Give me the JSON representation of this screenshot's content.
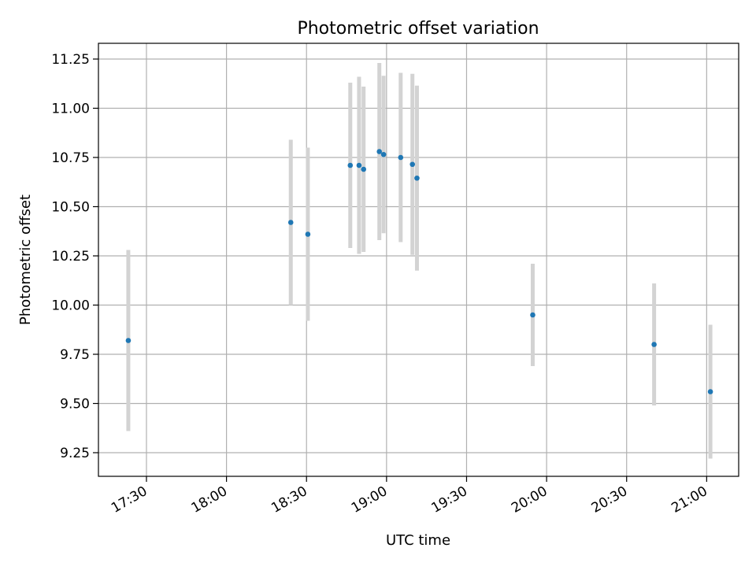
{
  "chart_data": {
    "type": "scatter",
    "title": "Photometric offset variation",
    "xlabel": "UTC time",
    "ylabel": "Photometric offset",
    "x_unit": "minutes since 00:00 UTC",
    "xlim": [
      1032,
      1272
    ],
    "ylim": [
      9.13,
      11.33
    ],
    "grid": true,
    "x_ticks": [
      {
        "value": 1050,
        "label": "17:30"
      },
      {
        "value": 1080,
        "label": "18:00"
      },
      {
        "value": 1110,
        "label": "18:30"
      },
      {
        "value": 1140,
        "label": "19:00"
      },
      {
        "value": 1170,
        "label": "19:30"
      },
      {
        "value": 1200,
        "label": "20:00"
      },
      {
        "value": 1230,
        "label": "20:30"
      },
      {
        "value": 1260,
        "label": "21:00"
      }
    ],
    "y_ticks": [
      {
        "value": 9.25,
        "label": "9.25"
      },
      {
        "value": 9.5,
        "label": "9.50"
      },
      {
        "value": 9.75,
        "label": "9.75"
      },
      {
        "value": 10.0,
        "label": "10.00"
      },
      {
        "value": 10.25,
        "label": "10.25"
      },
      {
        "value": 10.5,
        "label": "10.50"
      },
      {
        "value": 10.75,
        "label": "10.75"
      },
      {
        "value": 11.0,
        "label": "11.00"
      },
      {
        "value": 11.25,
        "label": "11.25"
      }
    ],
    "marker_color": "#1f77b4",
    "errorbar_color": "#d3d3d3",
    "points": [
      {
        "x": 1043.2,
        "y": 9.82,
        "err": 0.46
      },
      {
        "x": 1104.1,
        "y": 10.42,
        "err": 0.42
      },
      {
        "x": 1110.5,
        "y": 10.36,
        "err": 0.44
      },
      {
        "x": 1126.4,
        "y": 10.71,
        "err": 0.42
      },
      {
        "x": 1129.7,
        "y": 10.71,
        "err": 0.45
      },
      {
        "x": 1131.4,
        "y": 10.69,
        "err": 0.42
      },
      {
        "x": 1137.3,
        "y": 10.78,
        "err": 0.45
      },
      {
        "x": 1138.9,
        "y": 10.765,
        "err": 0.4
      },
      {
        "x": 1145.3,
        "y": 10.75,
        "err": 0.43
      },
      {
        "x": 1149.7,
        "y": 10.715,
        "err": 0.46
      },
      {
        "x": 1151.4,
        "y": 10.645,
        "err": 0.47
      },
      {
        "x": 1194.8,
        "y": 9.95,
        "err": 0.26
      },
      {
        "x": 1240.3,
        "y": 9.8,
        "err": 0.31
      },
      {
        "x": 1261.4,
        "y": 9.56,
        "err": 0.34
      }
    ]
  }
}
